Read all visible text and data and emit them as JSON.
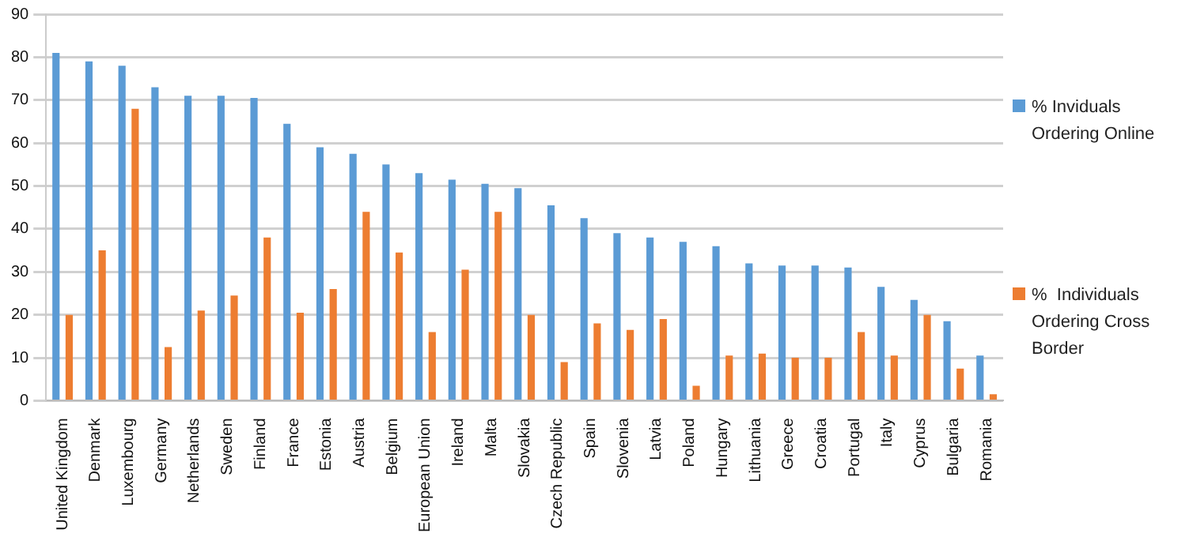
{
  "chart_data": {
    "type": "bar",
    "categories": [
      "United Kingdom",
      "Denmark",
      "Luxembourg",
      "Germany",
      "Netherlands",
      "Sweden",
      "Finland",
      "France",
      "Estonia",
      "Austria",
      "Belgium",
      "European Union",
      "Ireland",
      "Malta",
      "Slovakia",
      "Czech Republic",
      "Spain",
      "Slovenia",
      "Latvia",
      "Poland",
      "Hungary",
      "Lithuania",
      "Greece",
      "Croatia",
      "Portugal",
      "Italy",
      "Cyprus",
      "Bulgaria",
      "Romania"
    ],
    "series": [
      {
        "name": "% Inviduals Ordering Online",
        "color": "#5b9bd5",
        "values": [
          81,
          79,
          78,
          73,
          71,
          71,
          70.5,
          64.5,
          59,
          57.5,
          55,
          53,
          51.5,
          50.5,
          49.5,
          45.5,
          42.5,
          39,
          38,
          37,
          36,
          32,
          31.5,
          31.5,
          31,
          26.5,
          23.5,
          18.5,
          10.5
        ]
      },
      {
        "name": "%  Individuals Ordering Cross Border",
        "color": "#ed7d31",
        "values": [
          20,
          35,
          68,
          12.5,
          21,
          24.5,
          38,
          20.5,
          26,
          44,
          34.5,
          16,
          30.5,
          44,
          20,
          9,
          18,
          16.5,
          19,
          3.5,
          10.5,
          11,
          10,
          10,
          16,
          10.5,
          20,
          7.5,
          1.5
        ]
      }
    ],
    "ylim": [
      0,
      90
    ],
    "yticks": [
      0,
      10,
      20,
      30,
      40,
      50,
      60,
      70,
      80,
      90
    ],
    "grid": "y",
    "legend": "right"
  }
}
